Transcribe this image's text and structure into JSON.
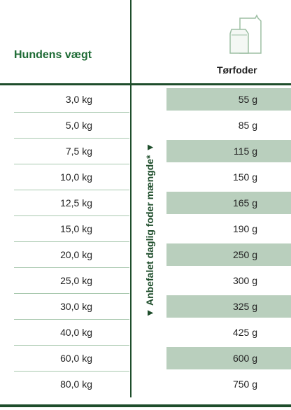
{
  "header": {
    "weight_label": "Hundens vægt",
    "food_label": "Tørfoder"
  },
  "side_label": "▼ Anbefalet daglig foder mængde* ▼",
  "table": {
    "rows": [
      [
        "3,0 kg",
        "55 g"
      ],
      [
        "5,0 kg",
        "85 g"
      ],
      [
        "7,5 kg",
        "115 g"
      ],
      [
        "10,0 kg",
        "150 g"
      ],
      [
        "12,5 kg",
        "165 g"
      ],
      [
        "15,0 kg",
        "190 g"
      ],
      [
        "20,0 kg",
        "250 g"
      ],
      [
        "25,0 kg",
        "300 g"
      ],
      [
        "30,0 kg",
        "325 g"
      ],
      [
        "40,0 kg",
        "425 g"
      ],
      [
        "60,0 kg",
        "600 g"
      ],
      [
        "80,0 kg",
        "750 g"
      ]
    ]
  }
}
